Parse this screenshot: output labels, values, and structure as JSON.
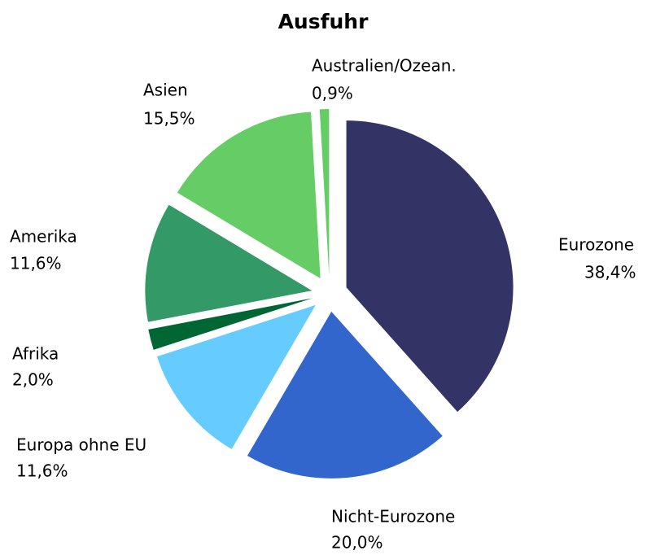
{
  "chart_data": {
    "type": "pie",
    "title": "Ausfuhr",
    "categories": [
      "Eurozone",
      "Nicht-Eurozone",
      "Europa ohne EU",
      "Afrika",
      "Amerika",
      "Asien",
      "Australien/Ozean."
    ],
    "values": [
      38.4,
      20.0,
      11.6,
      2.0,
      11.6,
      15.5,
      0.9
    ],
    "value_labels": [
      "38,4%",
      "20,0%",
      "11,6%",
      "2,0%",
      "11,6%",
      "15,5%",
      "0,9%"
    ],
    "colors": [
      "#333366",
      "#3366cc",
      "#66ccff",
      "#006633",
      "#339966",
      "#66cc66",
      "#66cc66"
    ]
  }
}
